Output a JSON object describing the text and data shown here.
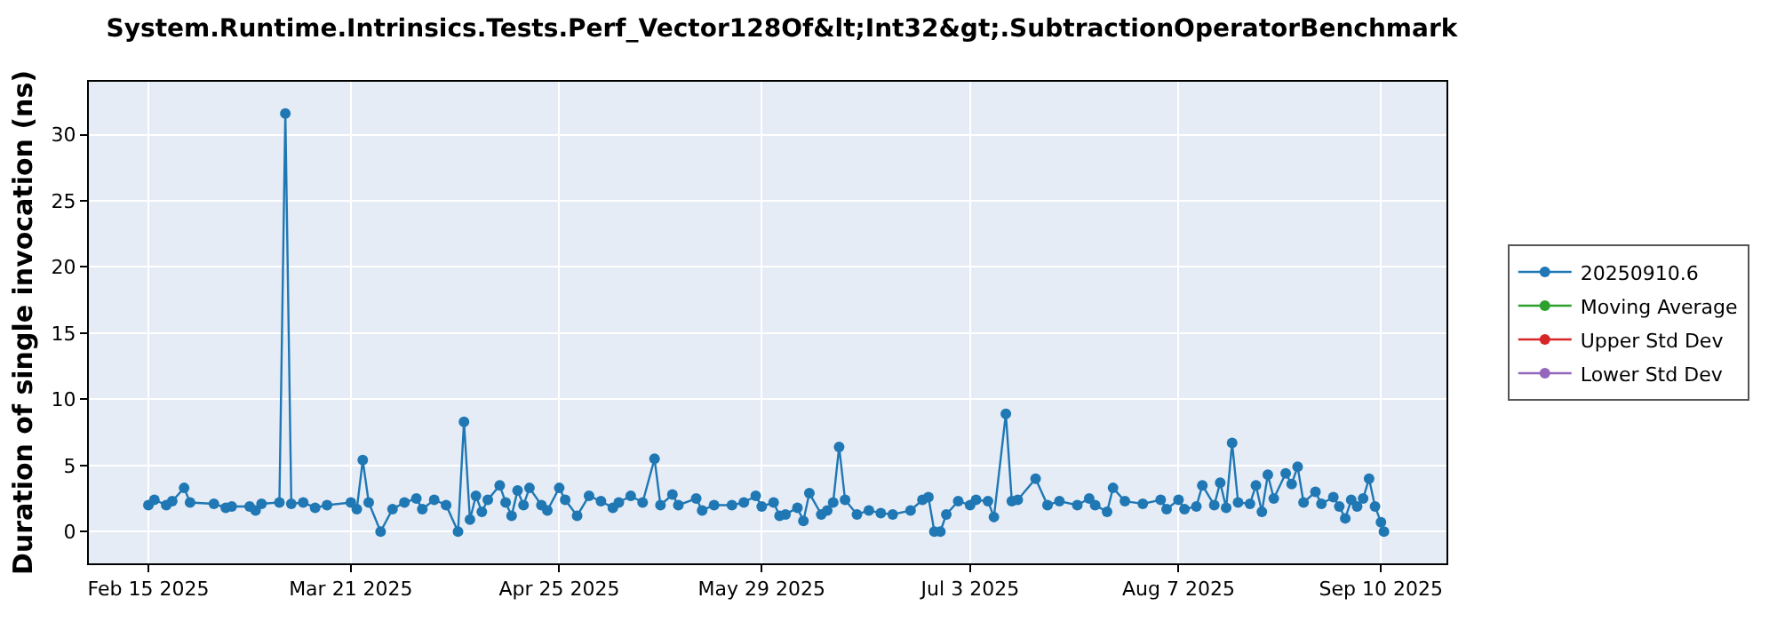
{
  "chart_data": {
    "type": "line",
    "title": "System.Runtime.Intrinsics.Tests.Perf_Vector128Of&lt;Int32&gt;.SubtractionOperatorBenchmark",
    "ylabel": "Duration of single invocation (ns)",
    "x": [
      "2025-02-15",
      "2025-02-16",
      "2025-02-18",
      "2025-02-19",
      "2025-02-21",
      "2025-02-22",
      "2025-02-26",
      "2025-02-28",
      "2025-03-01",
      "2025-03-04",
      "2025-03-05",
      "2025-03-06",
      "2025-03-09",
      "2025-03-10",
      "2025-03-11",
      "2025-03-13",
      "2025-03-15",
      "2025-03-17",
      "2025-03-21",
      "2025-03-22",
      "2025-03-23",
      "2025-03-24",
      "2025-03-26",
      "2025-03-28",
      "2025-03-30",
      "2025-04-01",
      "2025-04-02",
      "2025-04-04",
      "2025-04-06",
      "2025-04-08",
      "2025-04-09",
      "2025-04-10",
      "2025-04-11",
      "2025-04-12",
      "2025-04-13",
      "2025-04-15",
      "2025-04-16",
      "2025-04-17",
      "2025-04-18",
      "2025-04-19",
      "2025-04-20",
      "2025-04-22",
      "2025-04-23",
      "2025-04-25",
      "2025-04-26",
      "2025-04-28",
      "2025-04-30",
      "2025-05-02",
      "2025-05-04",
      "2025-05-05",
      "2025-05-07",
      "2025-05-09",
      "2025-05-11",
      "2025-05-12",
      "2025-05-14",
      "2025-05-15",
      "2025-05-18",
      "2025-05-19",
      "2025-05-21",
      "2025-05-24",
      "2025-05-26",
      "2025-05-28",
      "2025-05-29",
      "2025-05-31",
      "2025-06-01",
      "2025-06-02",
      "2025-06-04",
      "2025-06-05",
      "2025-06-06",
      "2025-06-08",
      "2025-06-09",
      "2025-06-10",
      "2025-06-11",
      "2025-06-12",
      "2025-06-14",
      "2025-06-16",
      "2025-06-18",
      "2025-06-20",
      "2025-06-23",
      "2025-06-25",
      "2025-06-26",
      "2025-06-27",
      "2025-06-28",
      "2025-06-29",
      "2025-07-01",
      "2025-07-03",
      "2025-07-04",
      "2025-07-06",
      "2025-07-07",
      "2025-07-09",
      "2025-07-10",
      "2025-07-11",
      "2025-07-14",
      "2025-07-16",
      "2025-07-18",
      "2025-07-21",
      "2025-07-23",
      "2025-07-24",
      "2025-07-26",
      "2025-07-27",
      "2025-07-29",
      "2025-08-01",
      "2025-08-04",
      "2025-08-05",
      "2025-08-07",
      "2025-08-08",
      "2025-08-10",
      "2025-08-11",
      "2025-08-13",
      "2025-08-14",
      "2025-08-15",
      "2025-08-16",
      "2025-08-17",
      "2025-08-19",
      "2025-08-20",
      "2025-08-21",
      "2025-08-22",
      "2025-08-23",
      "2025-08-25",
      "2025-08-26",
      "2025-08-27",
      "2025-08-28",
      "2025-08-30",
      "2025-08-31",
      "2025-09-02",
      "2025-09-03",
      "2025-09-04",
      "2025-09-05",
      "2025-09-06",
      "2025-09-07",
      "2025-09-08",
      "2025-09-09",
      "2025-09-10",
      "2025-09-10T12:00"
    ],
    "series": [
      {
        "name": "20250910.6",
        "color": "#1f77b4",
        "values": [
          2.0,
          2.4,
          2.0,
          2.3,
          3.3,
          2.2,
          2.1,
          1.8,
          1.9,
          1.9,
          1.6,
          2.1,
          2.2,
          31.6,
          2.1,
          2.2,
          1.8,
          2.0,
          2.2,
          1.7,
          5.4,
          2.2,
          0.0,
          1.7,
          2.2,
          2.5,
          1.7,
          2.4,
          2.0,
          0.0,
          8.3,
          0.9,
          2.7,
          1.5,
          2.4,
          3.5,
          2.2,
          1.2,
          3.1,
          2.0,
          3.3,
          2.0,
          1.6,
          3.3,
          2.4,
          1.2,
          2.7,
          2.3,
          1.8,
          2.2,
          2.7,
          2.2,
          5.5,
          2.0,
          2.8,
          2.0,
          2.5,
          1.6,
          2.0,
          2.0,
          2.2,
          2.7,
          1.9,
          2.2,
          1.2,
          1.3,
          1.8,
          0.8,
          2.9,
          1.3,
          1.6,
          2.2,
          6.4,
          2.4,
          1.3,
          1.6,
          1.4,
          1.3,
          1.6,
          2.4,
          2.6,
          0.0,
          0.0,
          1.3,
          2.3,
          2.0,
          2.4,
          2.3,
          1.1,
          8.9,
          2.3,
          2.4,
          4.0,
          2.0,
          2.3,
          2.0,
          2.5,
          2.0,
          1.5,
          3.3,
          2.3,
          2.1,
          2.4,
          1.7,
          2.4,
          1.7,
          1.9,
          3.5,
          2.0,
          3.7,
          1.8,
          6.7,
          2.2,
          2.1,
          3.5,
          1.5,
          4.3,
          2.5,
          4.4,
          3.6,
          4.9,
          2.2,
          3.0,
          2.1,
          2.6,
          1.9,
          1.0,
          2.4,
          1.9,
          2.5,
          4.0,
          1.9,
          0.7,
          0.0
        ]
      },
      {
        "name": "Moving Average",
        "color": "#2ca02c",
        "values": [
          null,
          null,
          null,
          null,
          null,
          null,
          null,
          null,
          null,
          null,
          null,
          null,
          null,
          null,
          null,
          null,
          null,
          null,
          null,
          null,
          null,
          null,
          null,
          null,
          null,
          null,
          null,
          null,
          null,
          null,
          null,
          null,
          null,
          null,
          null,
          null,
          null,
          null,
          null,
          null,
          null,
          null,
          null,
          null,
          null,
          null,
          null,
          null,
          null,
          null,
          null,
          null,
          null,
          null,
          null,
          null,
          null,
          null,
          null,
          null,
          null,
          null,
          null,
          null,
          null,
          null,
          null,
          null,
          null,
          null,
          null,
          null,
          null,
          null,
          null,
          null,
          null,
          null,
          null,
          null,
          null,
          null,
          null,
          null,
          null,
          null,
          null,
          null,
          null,
          null,
          null,
          null,
          null,
          null,
          null,
          null,
          null,
          null,
          null,
          null,
          null,
          null,
          null,
          null,
          null,
          null,
          null,
          null,
          null,
          null,
          null,
          null,
          null,
          null,
          null,
          null,
          null,
          null,
          null,
          null,
          null,
          null,
          null,
          null,
          null,
          null,
          null,
          null,
          null,
          null,
          null,
          null,
          null,
          null
        ]
      },
      {
        "name": "Upper Std Dev",
        "color": "#d62728",
        "values": [
          null,
          null,
          null,
          null,
          null,
          null,
          null,
          null,
          null,
          null,
          null,
          null,
          null,
          null,
          null,
          null,
          null,
          null,
          null,
          null,
          null,
          null,
          null,
          null,
          null,
          null,
          null,
          null,
          null,
          null,
          null,
          null,
          null,
          null,
          null,
          null,
          null,
          null,
          null,
          null,
          null,
          null,
          null,
          null,
          null,
          null,
          null,
          null,
          null,
          null,
          null,
          null,
          null,
          null,
          null,
          null,
          null,
          null,
          null,
          null,
          null,
          null,
          null,
          null,
          null,
          null,
          null,
          null,
          null,
          null,
          null,
          null,
          null,
          null,
          null,
          null,
          null,
          null,
          null,
          null,
          null,
          null,
          null,
          null,
          null,
          null,
          null,
          null,
          null,
          null,
          null,
          null,
          null,
          null,
          null,
          null,
          null,
          null,
          null,
          null,
          null,
          null,
          null,
          null,
          null,
          null,
          null,
          null,
          null,
          null,
          null,
          null,
          null,
          null,
          null,
          null,
          null,
          null,
          null,
          null,
          null,
          null,
          null,
          null,
          null,
          null,
          null,
          null,
          null,
          null,
          null,
          null,
          null,
          null
        ]
      },
      {
        "name": "Lower Std Dev",
        "color": "#9467bd",
        "values": [
          null,
          null,
          null,
          null,
          null,
          null,
          null,
          null,
          null,
          null,
          null,
          null,
          null,
          null,
          null,
          null,
          null,
          null,
          null,
          null,
          null,
          null,
          null,
          null,
          null,
          null,
          null,
          null,
          null,
          null,
          null,
          null,
          null,
          null,
          null,
          null,
          null,
          null,
          null,
          null,
          null,
          null,
          null,
          null,
          null,
          null,
          null,
          null,
          null,
          null,
          null,
          null,
          null,
          null,
          null,
          null,
          null,
          null,
          null,
          null,
          null,
          null,
          null,
          null,
          null,
          null,
          null,
          null,
          null,
          null,
          null,
          null,
          null,
          null,
          null,
          null,
          null,
          null,
          null,
          null,
          null,
          null,
          null,
          null,
          null,
          null,
          null,
          null,
          null,
          null,
          null,
          null,
          null,
          null,
          null,
          null,
          null,
          null,
          null,
          null,
          null,
          null,
          null,
          null,
          null,
          null,
          null,
          null,
          null,
          null,
          null,
          null,
          null,
          null,
          null,
          null,
          null,
          null,
          null,
          null,
          null,
          null,
          null,
          null,
          null,
          null,
          null,
          null,
          null,
          null,
          null,
          null,
          null,
          null
        ]
      }
    ],
    "xlim": [
      "2025-02-05",
      "2025-09-21"
    ],
    "xticks": [
      {
        "value": "2025-02-15",
        "label": "Feb 15 2025"
      },
      {
        "value": "2025-03-21",
        "label": "Mar 21 2025"
      },
      {
        "value": "2025-04-25",
        "label": "Apr 25 2025"
      },
      {
        "value": "2025-05-29",
        "label": "May 29 2025"
      },
      {
        "value": "2025-07-03",
        "label": "Jul 3 2025"
      },
      {
        "value": "2025-08-07",
        "label": "Aug 7 2025"
      },
      {
        "value": "2025-09-10",
        "label": "Sep 10 2025"
      }
    ],
    "ylim": [
      -2.4,
      34
    ],
    "yticks": [
      0,
      5,
      10,
      15,
      20,
      25,
      30
    ],
    "grid": true,
    "legend": "right",
    "marker": "circle",
    "line_style": "solid"
  }
}
